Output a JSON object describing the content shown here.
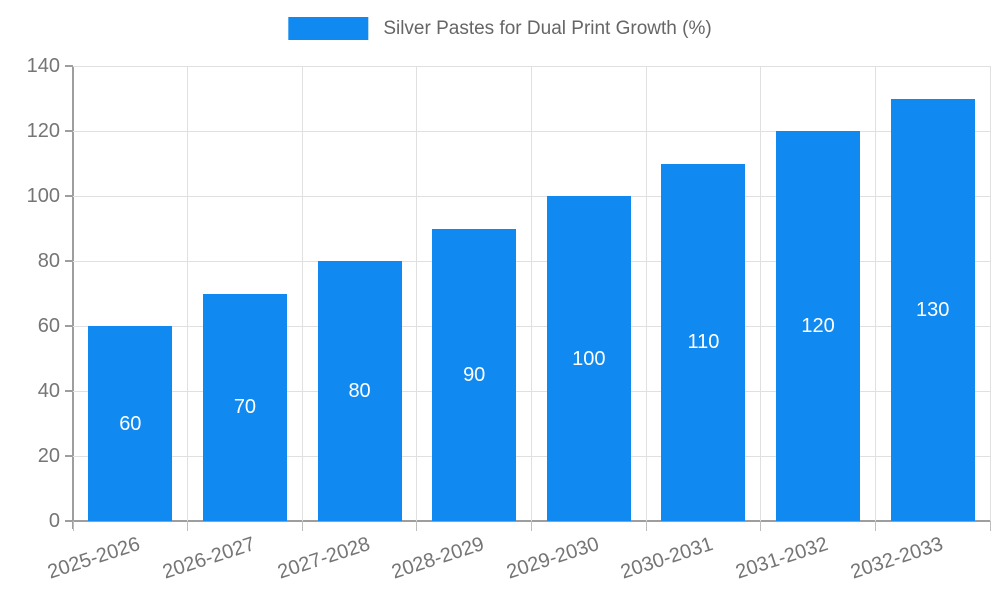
{
  "legend": {
    "label": "Silver Pastes for Dual Print Growth (%)"
  },
  "chart_data": {
    "type": "bar",
    "title": "Silver Pastes for Dual Print Growth (%)",
    "categories": [
      "2025-2026",
      "2026-2027",
      "2027-2028",
      "2028-2029",
      "2029-2030",
      "2030-2031",
      "2031-2032",
      "2032-2033"
    ],
    "series": [
      {
        "name": "Silver Pastes for Dual Print Growth (%)",
        "values": [
          60,
          70,
          80,
          90,
          100,
          110,
          120,
          130
        ]
      }
    ],
    "xlabel": "",
    "ylabel": "",
    "ylim": [
      0,
      140
    ],
    "yticks": [
      0,
      20,
      40,
      60,
      80,
      100,
      120,
      140
    ],
    "grid": true,
    "legend_position": "top-center",
    "bar_value_labels_shown": true,
    "colors": {
      "bar": "#1089F0",
      "bar_label": "#FFFFFF",
      "grid_line": "#E0E0E0",
      "axis_line": "#9E9E9E",
      "boundary_tick": "#BDBDBD",
      "tick_label": "#757575",
      "legend_text": "#666666",
      "background": "#FFFFFF"
    }
  }
}
